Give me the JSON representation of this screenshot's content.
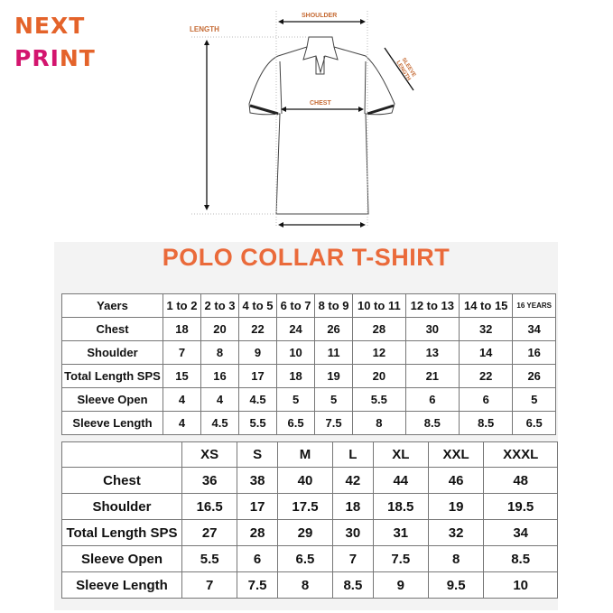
{
  "logo": {
    "line1": "NEXT",
    "line2_a": "PRI",
    "line2_b": "NT"
  },
  "diagram": {
    "length": "LENGTH",
    "shoulder": "SHOULDER",
    "chest": "CHEST",
    "sleeve": "SLEEVE LENGTH"
  },
  "title": "POLO COLLAR T-SHIRT",
  "kids_table": {
    "header": [
      "Yaers",
      "1 to 2",
      "2 to 3",
      "4 to 5",
      "6 to 7",
      "8 to 9",
      "10 to 11",
      "12 to 13",
      "14 to 15",
      "16 YEARS"
    ],
    "rows": [
      [
        "Chest",
        "18",
        "20",
        "22",
        "24",
        "26",
        "28",
        "30",
        "32",
        "34"
      ],
      [
        "Shoulder",
        "7",
        "8",
        "9",
        "10",
        "11",
        "12",
        "13",
        "14",
        "16"
      ],
      [
        "Total Length SPS",
        "15",
        "16",
        "17",
        "18",
        "19",
        "20",
        "21",
        "22",
        "26"
      ],
      [
        "Sleeve Open",
        "4",
        "4",
        "4.5",
        "5",
        "5",
        "5.5",
        "6",
        "6",
        "5"
      ],
      [
        "Sleeve Length",
        "4",
        "4.5",
        "5.5",
        "6.5",
        "7.5",
        "8",
        "8.5",
        "8.5",
        "6.5"
      ]
    ]
  },
  "adult_table": {
    "header": [
      "",
      "XS",
      "S",
      "M",
      "L",
      "XL",
      "XXL",
      "XXXL"
    ],
    "rows": [
      [
        "Chest",
        "36",
        "38",
        "40",
        "42",
        "44",
        "46",
        "48"
      ],
      [
        "Shoulder",
        "16.5",
        "17",
        "17.5",
        "18",
        "18.5",
        "19",
        "19.5"
      ],
      [
        "Total Length SPS",
        "27",
        "28",
        "29",
        "30",
        "31",
        "32",
        "34"
      ],
      [
        "Sleeve Open",
        "5.5",
        "6",
        "6.5",
        "7",
        "7.5",
        "8",
        "8.5"
      ],
      [
        "Sleeve Length",
        "7",
        "7.5",
        "8",
        "8.5",
        "9",
        "9.5",
        "10"
      ]
    ]
  }
}
